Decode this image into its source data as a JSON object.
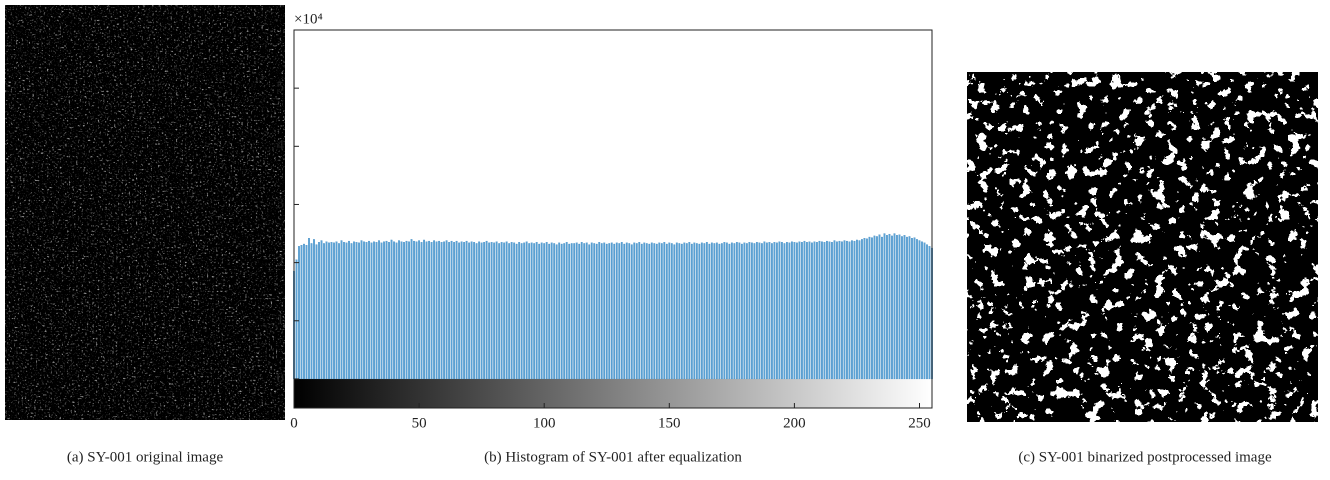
{
  "chart_data": {
    "type": "bar",
    "scale_label": "×10⁴",
    "color": "#5ba3d6",
    "xlim": [
      0,
      255
    ],
    "xticks": [
      0,
      50,
      100,
      150,
      200,
      250
    ],
    "ylim": [
      -0.5,
      6
    ],
    "yticks": [
      0,
      1,
      2,
      3,
      4,
      5
    ],
    "values": [
      1.85,
      2.05,
      2.28,
      2.3,
      2.32,
      2.3,
      2.42,
      2.33,
      2.4,
      2.31,
      2.35,
      2.38,
      2.33,
      2.36,
      2.34,
      2.35,
      2.34,
      2.36,
      2.33,
      2.38,
      2.35,
      2.34,
      2.37,
      2.33,
      2.36,
      2.35,
      2.34,
      2.38,
      2.36,
      2.35,
      2.37,
      2.34,
      2.36,
      2.35,
      2.38,
      2.34,
      2.36,
      2.37,
      2.35,
      2.39,
      2.36,
      2.34,
      2.38,
      2.36,
      2.35,
      2.37,
      2.36,
      2.4,
      2.37,
      2.36,
      2.38,
      2.35,
      2.39,
      2.36,
      2.37,
      2.35,
      2.38,
      2.36,
      2.37,
      2.35,
      2.36,
      2.38,
      2.35,
      2.37,
      2.35,
      2.37,
      2.34,
      2.36,
      2.35,
      2.37,
      2.34,
      2.36,
      2.35,
      2.33,
      2.36,
      2.34,
      2.35,
      2.37,
      2.34,
      2.35,
      2.34,
      2.36,
      2.33,
      2.35,
      2.34,
      2.36,
      2.33,
      2.35,
      2.34,
      2.32,
      2.35,
      2.33,
      2.34,
      2.36,
      2.33,
      2.34,
      2.33,
      2.35,
      2.32,
      2.34,
      2.33,
      2.35,
      2.32,
      2.34,
      2.33,
      2.31,
      2.34,
      2.32,
      2.33,
      2.35,
      2.32,
      2.33,
      2.33,
      2.34,
      2.32,
      2.35,
      2.33,
      2.34,
      2.31,
      2.34,
      2.33,
      2.32,
      2.35,
      2.33,
      2.34,
      2.32,
      2.33,
      2.34,
      2.32,
      2.34,
      2.33,
      2.35,
      2.32,
      2.34,
      2.33,
      2.31,
      2.34,
      2.33,
      2.35,
      2.32,
      2.34,
      2.33,
      2.32,
      2.34,
      2.33,
      2.32,
      2.34,
      2.33,
      2.35,
      2.32,
      2.34,
      2.33,
      2.31,
      2.34,
      2.33,
      2.32,
      2.34,
      2.33,
      2.35,
      2.32,
      2.34,
      2.33,
      2.32,
      2.34,
      2.33,
      2.35,
      2.32,
      2.34,
      2.33,
      2.34,
      2.32,
      2.33,
      2.35,
      2.34,
      2.32,
      2.34,
      2.33,
      2.35,
      2.34,
      2.32,
      2.34,
      2.33,
      2.35,
      2.34,
      2.33,
      2.35,
      2.34,
      2.33,
      2.36,
      2.34,
      2.35,
      2.33,
      2.35,
      2.34,
      2.36,
      2.35,
      2.33,
      2.35,
      2.34,
      2.36,
      2.35,
      2.34,
      2.36,
      2.35,
      2.37,
      2.35,
      2.36,
      2.34,
      2.36,
      2.35,
      2.37,
      2.36,
      2.35,
      2.37,
      2.36,
      2.35,
      2.38,
      2.36,
      2.37,
      2.36,
      2.38,
      2.37,
      2.36,
      2.38,
      2.37,
      2.39,
      2.38,
      2.4,
      2.42,
      2.41,
      2.44,
      2.43,
      2.46,
      2.45,
      2.48,
      2.44,
      2.5,
      2.47,
      2.49,
      2.46,
      2.5,
      2.47,
      2.48,
      2.45,
      2.47,
      2.44,
      2.45,
      2.42,
      2.43,
      2.4,
      2.38,
      2.36,
      2.34,
      2.31,
      2.28,
      2.25
    ]
  },
  "captions": [
    "(a) SY-001 original image",
    "(b) Histogram of SY-001 after equalization",
    "(c) SY-001 binarized postprocessed image"
  ]
}
